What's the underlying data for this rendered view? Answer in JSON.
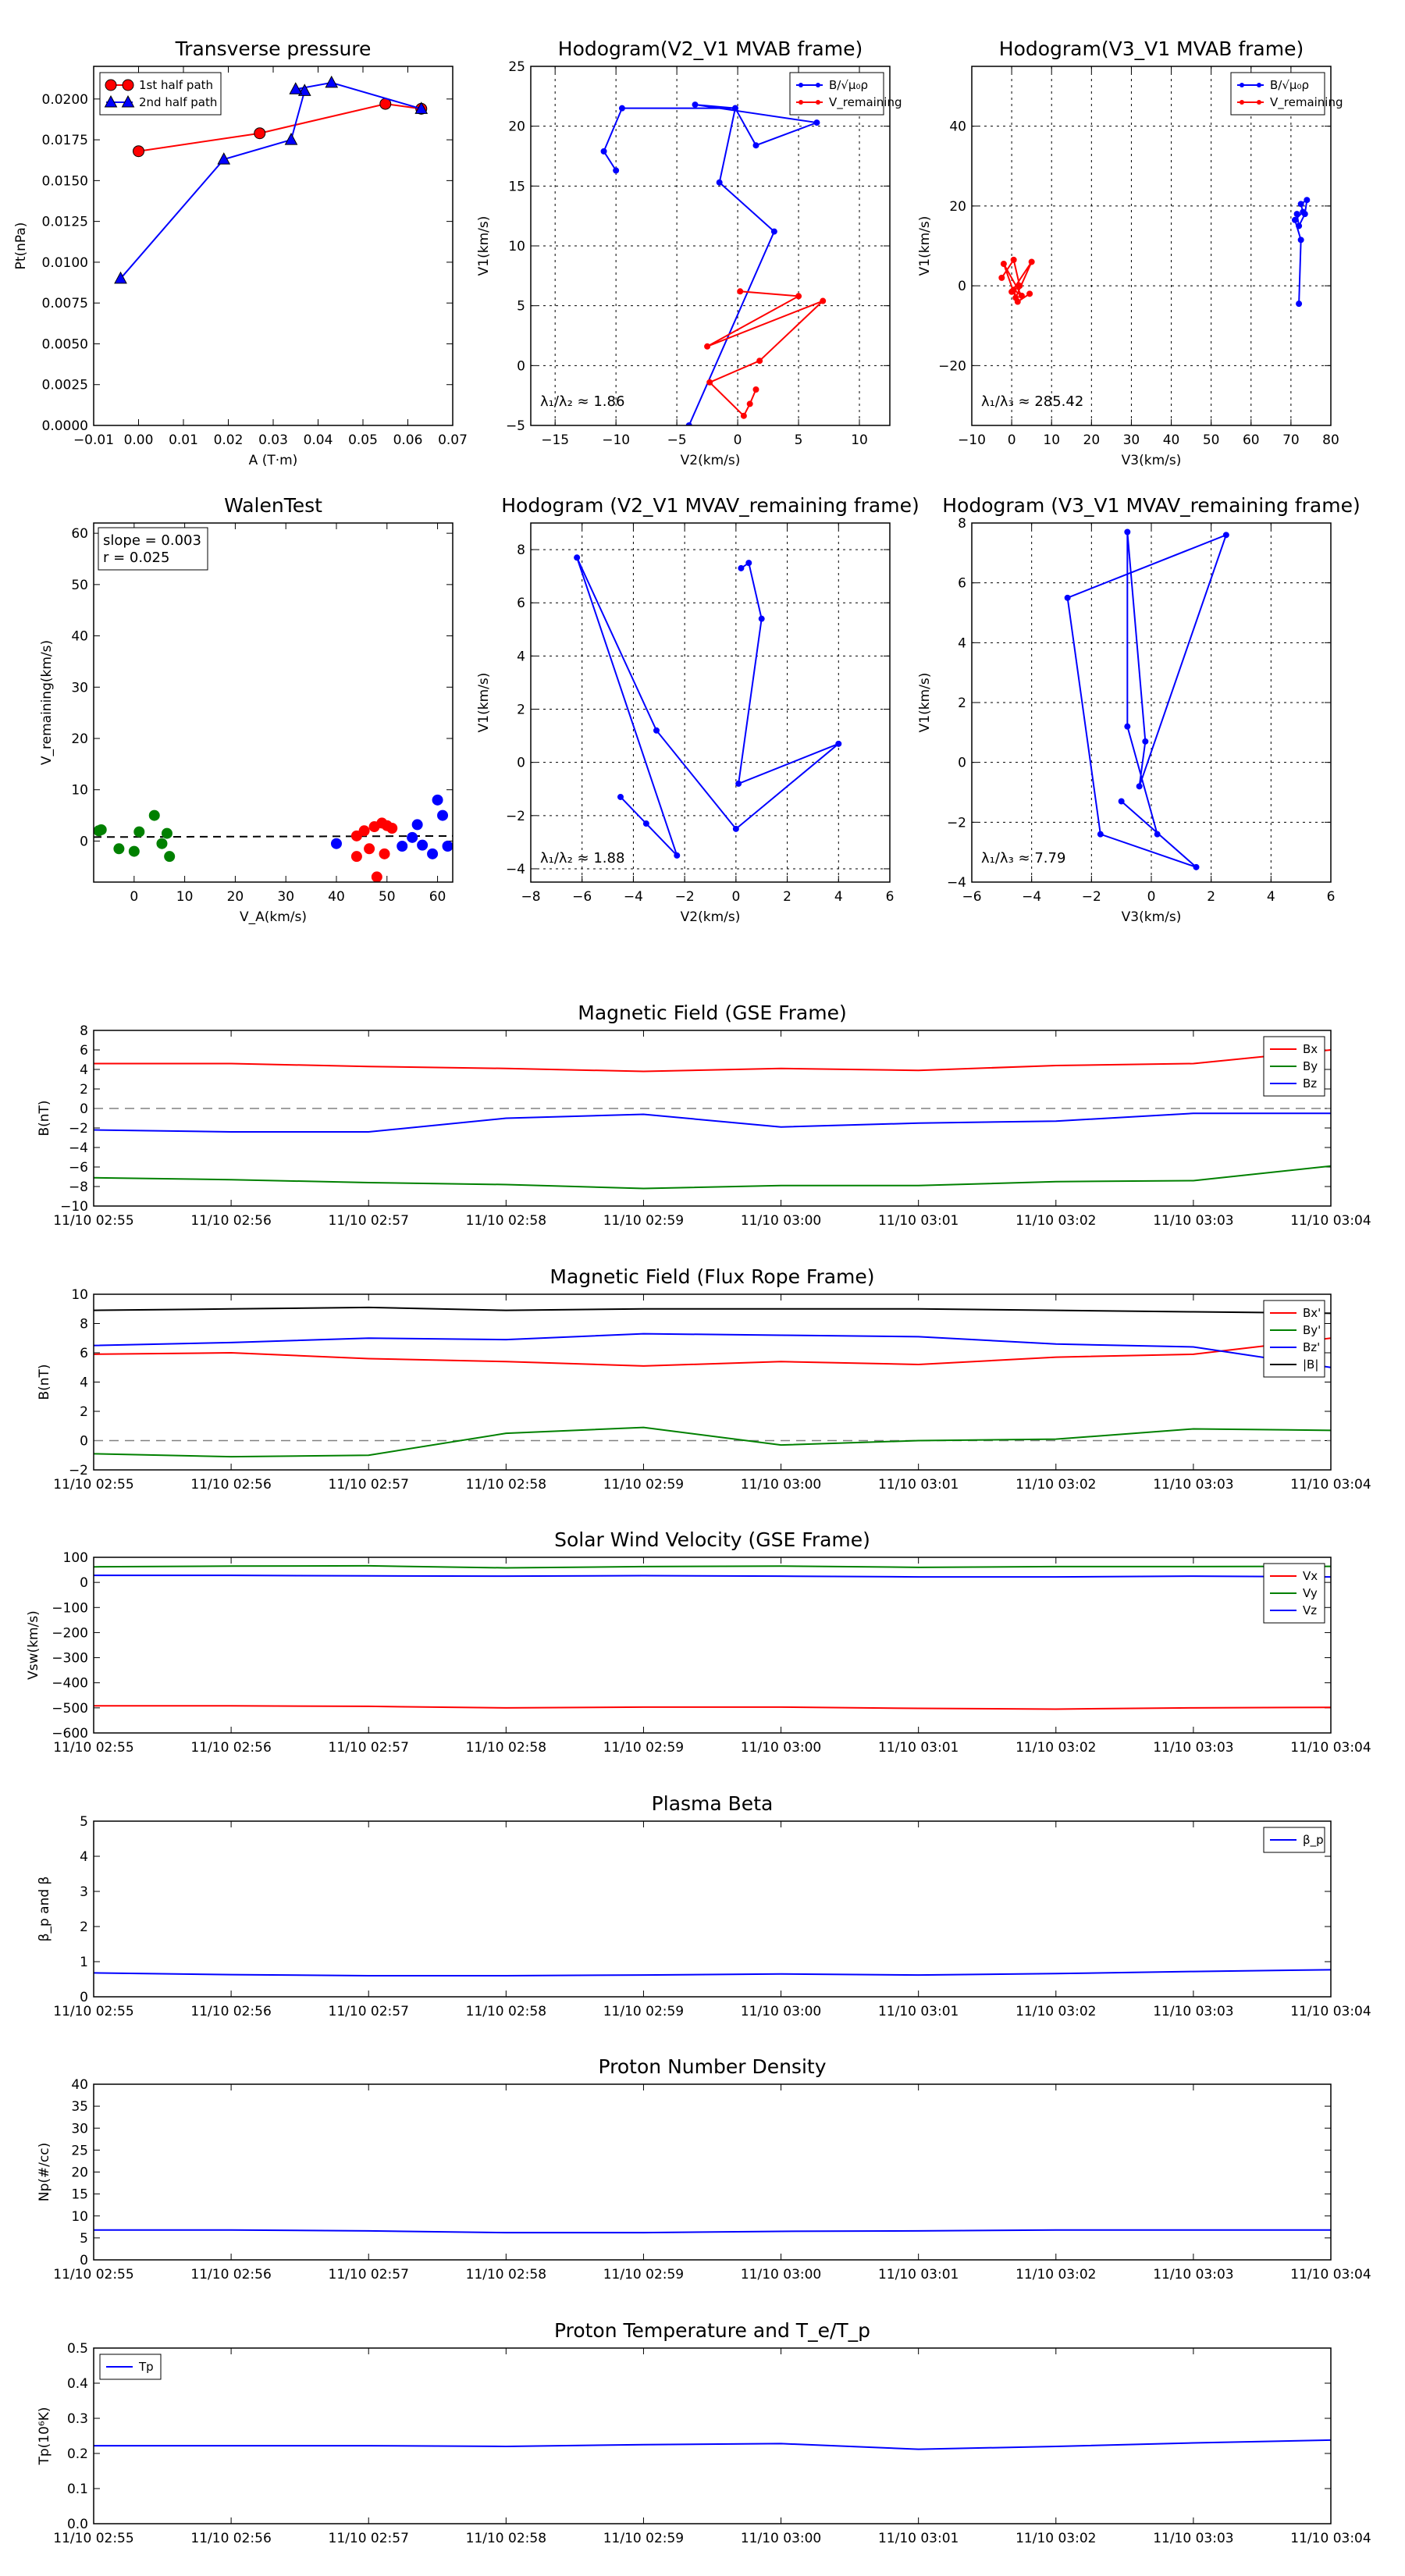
{
  "colors": {
    "red": "#ff0000",
    "green": "#008000",
    "blue": "#0000ff",
    "black": "#000000",
    "gray": "#808080"
  },
  "time_ticks": [
    "11/10 02:55",
    "11/10 02:56",
    "11/10 02:57",
    "11/10 02:58",
    "11/10 02:59",
    "11/10 03:00",
    "11/10 03:01",
    "11/10 03:02",
    "11/10 03:03",
    "11/10 03:04"
  ],
  "chart_data": [
    {
      "id": "transverse",
      "type": "line",
      "title": "Transverse pressure",
      "xlabel": "A (T·m)",
      "ylabel": "Pt(nPa)",
      "xlim": [
        -0.01,
        0.07
      ],
      "ylim": [
        0,
        0.022
      ],
      "xticks": [
        -0.01,
        0.0,
        0.01,
        0.02,
        0.03,
        0.04,
        0.05,
        0.06,
        0.07
      ],
      "xtick_labels": [
        "−0.01",
        "0.00",
        "0.01",
        "0.02",
        "0.03",
        "0.04",
        "0.05",
        "0.06",
        "0.07"
      ],
      "yticks": [
        0,
        0.0025,
        0.005,
        0.0075,
        0.01,
        0.0125,
        0.015,
        0.0175,
        0.02
      ],
      "ytick_labels": [
        "0.0000",
        "0.0025",
        "0.0050",
        "0.0075",
        "0.0100",
        "0.0125",
        "0.0150",
        "0.0175",
        "0.0200"
      ],
      "legend_position": "top-left",
      "series": [
        {
          "name": "1st half path",
          "color": "red",
          "marker": "circle",
          "x": [
            0.0,
            0.027,
            0.055,
            0.063
          ],
          "y": [
            0.0168,
            0.0179,
            0.0197,
            0.0194
          ]
        },
        {
          "name": "2nd half path",
          "color": "blue",
          "marker": "triangle",
          "x": [
            -0.004,
            0.019,
            0.034,
            0.037,
            0.035,
            0.043,
            0.063
          ],
          "y": [
            0.009,
            0.0163,
            0.0175,
            0.0205,
            0.0206,
            0.021,
            0.0194
          ]
        }
      ]
    },
    {
      "id": "hodo_v2v1_mvab",
      "type": "line",
      "title": "Hodogram(V2_V1 MVAB frame)",
      "xlabel": "V2(km/s)",
      "ylabel": "V1(km/s)",
      "xlim": [
        -17,
        12.5
      ],
      "ylim": [
        -5,
        25
      ],
      "xticks": [
        -15,
        -10,
        -5,
        0,
        5,
        10
      ],
      "xtick_labels": [
        "−15",
        "−10",
        "−5",
        "0",
        "5",
        "10"
      ],
      "yticks": [
        -5,
        0,
        5,
        10,
        15,
        20,
        25
      ],
      "ytick_labels": [
        "−5",
        "0",
        "5",
        "10",
        "15",
        "20",
        "25"
      ],
      "grid": true,
      "legend_position": "top-right",
      "annotation": "λ₁/λ₂ ≈ 1.86",
      "series": [
        {
          "name": "B/√μ₀ρ",
          "color": "blue",
          "marker": "point",
          "x": [
            -10,
            -11,
            -9.5,
            -0.2,
            -3.5,
            6.5,
            1.5,
            -0.2,
            -1.5,
            3,
            -4
          ],
          "y": [
            16.3,
            17.9,
            21.5,
            21.5,
            21.8,
            20.3,
            18.4,
            21.5,
            15.3,
            11.2,
            -5
          ]
        },
        {
          "name": "V_remaining",
          "color": "red",
          "marker": "point",
          "x": [
            0.2,
            5,
            -2.5,
            7,
            1.8,
            -2.3,
            0.5,
            1,
            1.5
          ],
          "y": [
            6.2,
            5.8,
            1.6,
            5.4,
            0.4,
            -1.4,
            -4.2,
            -3.2,
            -2
          ]
        }
      ]
    },
    {
      "id": "hodo_v3v1_mvab",
      "type": "line",
      "title": "Hodogram(V3_V1 MVAB frame)",
      "xlabel": "V3(km/s)",
      "ylabel": "V1(km/s)",
      "xlim": [
        -10,
        80
      ],
      "ylim": [
        -35,
        55
      ],
      "xticks": [
        -10,
        0,
        10,
        20,
        30,
        40,
        50,
        60,
        70,
        80
      ],
      "xtick_labels": [
        "−10",
        "0",
        "10",
        "20",
        "30",
        "40",
        "50",
        "60",
        "70",
        "80"
      ],
      "yticks": [
        -20,
        0,
        20,
        40
      ],
      "ytick_labels": [
        "−20",
        "0",
        "20",
        "40"
      ],
      "grid": true,
      "legend_position": "top-right",
      "annotation": "λ₁/λ₃ ≈ 285.42",
      "series": [
        {
          "name": "B/√μ₀ρ",
          "color": "blue",
          "marker": "point",
          "x": [
            72,
            72.5,
            71,
            73,
            72.5,
            74,
            73.5,
            72,
            71.5
          ],
          "y": [
            -4.5,
            11.5,
            16.5,
            18.5,
            20.5,
            21.5,
            18,
            15,
            18
          ]
        },
        {
          "name": "V_remaining",
          "color": "red",
          "marker": "point",
          "x": [
            -2.5,
            0.5,
            2,
            0,
            5,
            1,
            -2,
            2.5,
            0.5,
            1.5,
            4.5
          ],
          "y": [
            2,
            6.5,
            0,
            -1.5,
            6,
            -3,
            5.5,
            -2.5,
            -1,
            -4,
            -2
          ]
        }
      ]
    },
    {
      "id": "walen",
      "type": "scatter",
      "title": "WalenTest",
      "xlabel": "V_A(km/s)",
      "ylabel": "V_remaining(km/s)",
      "xlim": [
        -8,
        63
      ],
      "ylim": [
        -8,
        62
      ],
      "xticks": [
        0,
        10,
        20,
        30,
        40,
        50,
        60
      ],
      "xtick_labels": [
        "0",
        "10",
        "20",
        "30",
        "40",
        "50",
        "60"
      ],
      "yticks": [
        0,
        10,
        20,
        30,
        40,
        50,
        60
      ],
      "ytick_labels": [
        "0",
        "10",
        "20",
        "30",
        "40",
        "50",
        "60"
      ],
      "annotation_lines": [
        "slope = 0.003",
        "r = 0.025"
      ],
      "fit_line": {
        "slope": 0.003,
        "intercept": 0.8
      },
      "series": [
        {
          "name": "green",
          "color": "green",
          "x": [
            -7,
            -6.5,
            -3,
            0,
            1,
            4,
            5.5,
            6.5,
            7
          ],
          "y": [
            2,
            2.2,
            -1.5,
            -2,
            1.8,
            5,
            -0.5,
            1.5,
            -3
          ]
        },
        {
          "name": "red",
          "color": "red",
          "x": [
            44,
            44,
            45.5,
            46.5,
            47.5,
            48,
            49,
            49.5,
            50,
            51
          ],
          "y": [
            1,
            -3,
            2,
            -1.5,
            2.8,
            -7,
            3.5,
            -2.5,
            3,
            2.5
          ]
        },
        {
          "name": "blue",
          "color": "blue",
          "x": [
            40,
            53,
            55,
            56,
            57,
            59,
            60,
            61,
            62
          ],
          "y": [
            -0.5,
            -1,
            0.7,
            3.2,
            -0.8,
            -2.5,
            8,
            5,
            -1
          ]
        }
      ]
    },
    {
      "id": "hodo_v2v1_mvav",
      "type": "line",
      "title": "Hodogram (V2_V1 MVAV_remaining frame)",
      "xlabel": "V2(km/s)",
      "ylabel": "V1(km/s)",
      "xlim": [
        -8,
        6
      ],
      "ylim": [
        -4.5,
        9
      ],
      "xticks": [
        -8,
        -6,
        -4,
        -2,
        0,
        2,
        4,
        6
      ],
      "xtick_labels": [
        "−8",
        "−6",
        "−4",
        "−2",
        "0",
        "2",
        "4",
        "6"
      ],
      "yticks": [
        -4,
        -2,
        0,
        2,
        4,
        6,
        8
      ],
      "ytick_labels": [
        "−4",
        "−2",
        "0",
        "2",
        "4",
        "6",
        "8"
      ],
      "grid": true,
      "annotation": "λ₁/λ₂ ≈ 1.88",
      "series": [
        {
          "name": "path",
          "color": "blue",
          "marker": "point",
          "x": [
            -4.5,
            -3.5,
            -2.3,
            -6.2,
            -3.1,
            0,
            4,
            0.1,
            1,
            0.5,
            0.2
          ],
          "y": [
            -1.3,
            -2.3,
            -3.5,
            7.7,
            1.2,
            -2.5,
            0.7,
            -0.8,
            5.4,
            7.5,
            7.3
          ]
        }
      ]
    },
    {
      "id": "hodo_v3v1_mvav",
      "type": "line",
      "title": "Hodogram (V3_V1 MVAV_remaining frame)",
      "xlabel": "V3(km/s)",
      "ylabel": "V1(km/s)",
      "xlim": [
        -6,
        6
      ],
      "ylim": [
        -4,
        8
      ],
      "xticks": [
        -6,
        -4,
        -2,
        0,
        2,
        4,
        6
      ],
      "xtick_labels": [
        "−6",
        "−4",
        "−2",
        "0",
        "2",
        "4",
        "6"
      ],
      "yticks": [
        -4,
        -2,
        0,
        2,
        4,
        6,
        8
      ],
      "ytick_labels": [
        "−4",
        "−2",
        "0",
        "2",
        "4",
        "6",
        "8"
      ],
      "grid": true,
      "annotation": "λ₁/λ₃ ≈ 7.79",
      "series": [
        {
          "name": "path",
          "color": "blue",
          "marker": "point",
          "x": [
            -1,
            1.5,
            -1.7,
            -2.8,
            2.5,
            -0.4,
            -0.2,
            -0.8,
            -0.8,
            0.2
          ],
          "y": [
            -1.3,
            -3.5,
            -2.4,
            5.5,
            7.6,
            -0.8,
            0.7,
            7.7,
            1.2,
            -2.4
          ]
        }
      ]
    },
    {
      "id": "mag_gse",
      "type": "line",
      "title": "Magnetic Field (GSE Frame)",
      "xlabel": "",
      "ylabel": "B(nT)",
      "ylim": [
        -10,
        8
      ],
      "yticks": [
        -10,
        -8,
        -6,
        -4,
        -2,
        0,
        2,
        4,
        6,
        8
      ],
      "ytick_labels": [
        "−10",
        "−8",
        "−6",
        "−4",
        "−2",
        "0",
        "2",
        "4",
        "6",
        "8"
      ],
      "zero_line": true,
      "legend_position": "top-right",
      "series": [
        {
          "name": "Bx",
          "color": "red",
          "values": [
            4.6,
            4.6,
            4.3,
            4.1,
            3.8,
            4.1,
            3.9,
            4.4,
            4.6,
            6.0
          ]
        },
        {
          "name": "By",
          "color": "green",
          "values": [
            -7.1,
            -7.3,
            -7.6,
            -7.8,
            -8.2,
            -7.9,
            -7.9,
            -7.5,
            -7.4,
            -5.9
          ]
        },
        {
          "name": "Bz",
          "color": "blue",
          "values": [
            -2.2,
            -2.4,
            -2.4,
            -1.0,
            -0.6,
            -1.9,
            -1.5,
            -1.3,
            -0.5,
            -0.5
          ]
        }
      ]
    },
    {
      "id": "mag_fr",
      "type": "line",
      "title": "Magnetic Field (Flux Rope Frame)",
      "xlabel": "",
      "ylabel": "B(nT)",
      "ylim": [
        -2,
        10
      ],
      "yticks": [
        -2,
        0,
        2,
        4,
        6,
        8,
        10
      ],
      "ytick_labels": [
        "−2",
        "0",
        "2",
        "4",
        "6",
        "8",
        "10"
      ],
      "zero_line": true,
      "legend_position": "top-right",
      "series": [
        {
          "name": "Bx'",
          "color": "red",
          "values": [
            5.9,
            6.0,
            5.6,
            5.4,
            5.1,
            5.4,
            5.2,
            5.7,
            5.9,
            7.0
          ]
        },
        {
          "name": "By'",
          "color": "green",
          "values": [
            -0.9,
            -1.1,
            -1.0,
            0.5,
            0.9,
            -0.3,
            0.0,
            0.1,
            0.8,
            0.7
          ]
        },
        {
          "name": "Bz'",
          "color": "blue",
          "values": [
            6.5,
            6.7,
            7.0,
            6.9,
            7.3,
            7.2,
            7.1,
            6.6,
            6.4,
            5.0
          ]
        },
        {
          "name": "|B|",
          "color": "black",
          "values": [
            8.9,
            9.0,
            9.1,
            8.9,
            9.0,
            9.0,
            9.0,
            8.9,
            8.8,
            8.7
          ]
        }
      ]
    },
    {
      "id": "sw_vel",
      "type": "line",
      "title": "Solar Wind Velocity (GSE Frame)",
      "xlabel": "",
      "ylabel": "Vsw(km/s)",
      "ylim": [
        -600,
        100
      ],
      "yticks": [
        -600,
        -500,
        -400,
        -300,
        -200,
        -100,
        0,
        100
      ],
      "ytick_labels": [
        "−600",
        "−500",
        "−400",
        "−300",
        "−200",
        "−100",
        "0",
        "100"
      ],
      "legend_position": "top-right",
      "series": [
        {
          "name": "Vx",
          "color": "red",
          "values": [
            -492,
            -492,
            -494,
            -500,
            -497,
            -497,
            -502,
            -505,
            -500,
            -498
          ]
        },
        {
          "name": "Vy",
          "color": "green",
          "values": [
            62,
            65,
            66,
            58,
            63,
            65,
            60,
            63,
            63,
            64
          ]
        },
        {
          "name": "Vz",
          "color": "blue",
          "values": [
            28,
            28,
            26,
            25,
            27,
            25,
            22,
            22,
            25,
            22
          ]
        }
      ]
    },
    {
      "id": "beta",
      "type": "line",
      "title": "Plasma Beta",
      "xlabel": "",
      "ylabel": "β_p and β",
      "ylim": [
        0,
        5
      ],
      "yticks": [
        0,
        1,
        2,
        3,
        4,
        5
      ],
      "ytick_labels": [
        "0",
        "1",
        "2",
        "3",
        "4",
        "5"
      ],
      "legend_position": "top-right",
      "series": [
        {
          "name": "β_p",
          "color": "blue",
          "values": [
            0.68,
            0.63,
            0.6,
            0.6,
            0.62,
            0.65,
            0.62,
            0.66,
            0.72,
            0.77
          ]
        }
      ]
    },
    {
      "id": "density",
      "type": "line",
      "title": "Proton Number Density",
      "xlabel": "",
      "ylabel": "Np(#/cc)",
      "ylim": [
        0,
        40
      ],
      "yticks": [
        0,
        5,
        10,
        15,
        20,
        25,
        30,
        35,
        40
      ],
      "ytick_labels": [
        "0",
        "5",
        "10",
        "15",
        "20",
        "25",
        "30",
        "35",
        "40"
      ],
      "series": [
        {
          "name": "Np",
          "color": "blue",
          "values": [
            6.8,
            6.8,
            6.6,
            6.2,
            6.2,
            6.5,
            6.6,
            6.8,
            6.8,
            6.8
          ]
        }
      ]
    },
    {
      "id": "temp",
      "type": "line",
      "title": "Proton Temperature and T_e/T_p",
      "xlabel": "",
      "ylabel": "Tp(10⁶K)",
      "ylim": [
        0,
        0.5
      ],
      "yticks": [
        0,
        0.1,
        0.2,
        0.3,
        0.4,
        0.5
      ],
      "ytick_labels": [
        "0.0",
        "0.1",
        "0.2",
        "0.3",
        "0.4",
        "0.5"
      ],
      "legend_position": "top-left",
      "series": [
        {
          "name": "Tp",
          "color": "blue",
          "values": [
            0.222,
            0.222,
            0.222,
            0.22,
            0.225,
            0.228,
            0.212,
            0.22,
            0.23,
            0.238
          ]
        }
      ]
    }
  ]
}
